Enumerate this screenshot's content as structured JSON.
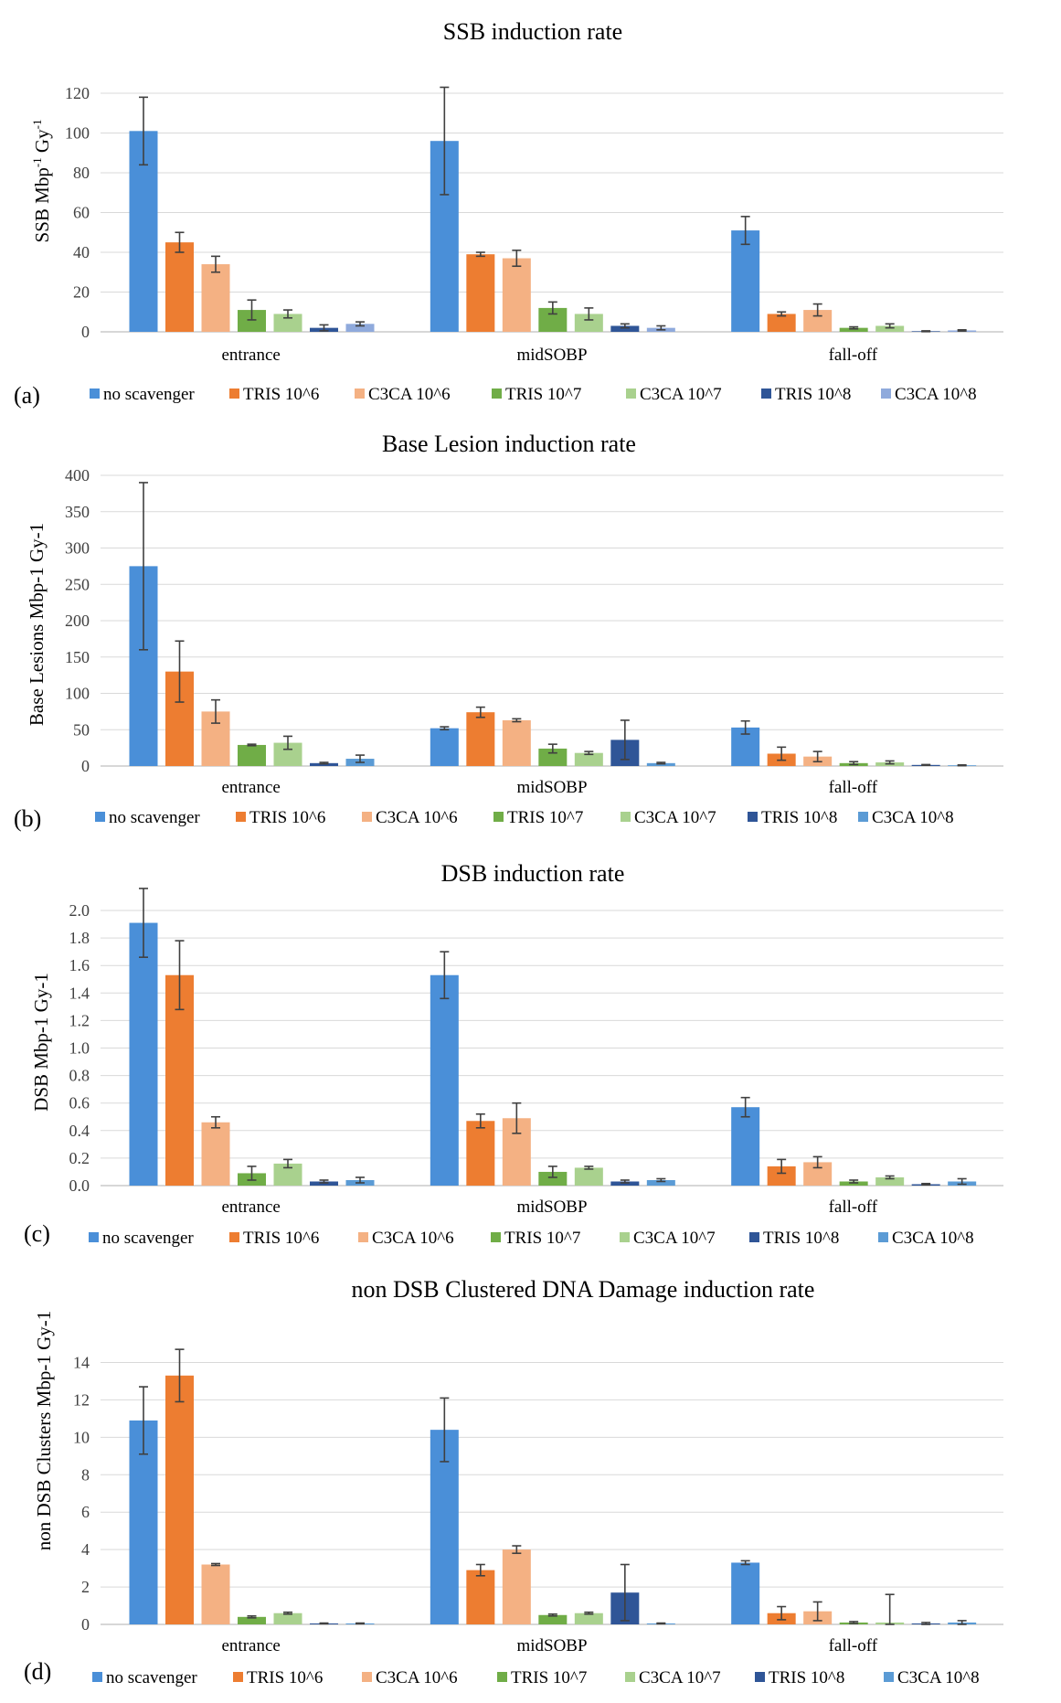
{
  "figure": {
    "categories": [
      "entrance",
      "midSOBP",
      "fall-off"
    ],
    "series_names": [
      "no scavenger",
      "TRIS 10^6",
      "C3CA 10^6",
      "TRIS 10^7",
      "C3CA 10^7",
      "TRIS 10^8",
      "C3CA 10^8"
    ],
    "series_names_panel_a": [
      "no scavenger",
      "TRIS 10^6",
      "C3CA 10^6",
      "TRIS  10^7",
      "C3CA 10^7",
      "TRIS 10^8",
      "C3CA 10^8"
    ],
    "colors": [
      "#4a8fd8",
      "#ed7d31",
      "#f4b183",
      "#70ad47",
      "#a9d18e",
      "#2f5597",
      "#5b9bd5"
    ],
    "colors_panel_a": [
      "#4a8fd8",
      "#ed7d31",
      "#f4b183",
      "#70ad47",
      "#a9d18e",
      "#2f5597",
      "#8faadc"
    ]
  },
  "chart_data": [
    {
      "type": "bar",
      "panel_label": "(a)",
      "title": "SSB induction rate",
      "ylabel": "SSB Mbp-1 Gy-1",
      "ylabel_parts": [
        "SSB Mbp",
        "-1",
        " Gy",
        "-1"
      ],
      "ylim": [
        0,
        120
      ],
      "yticks": [
        "0",
        "20",
        "40",
        "60",
        "80",
        "100",
        "120"
      ],
      "ytick_values": [
        0,
        20,
        40,
        60,
        80,
        100,
        120
      ],
      "categories": [
        "entrance",
        "midSOBP",
        "fall-off"
      ],
      "series": [
        {
          "name": "no scavenger",
          "values": [
            101,
            96,
            51
          ],
          "errors": [
            17,
            27,
            7
          ]
        },
        {
          "name": "TRIS 10^6",
          "values": [
            45,
            39,
            9
          ],
          "errors": [
            5,
            1,
            1
          ]
        },
        {
          "name": "C3CA 10^6",
          "values": [
            34,
            37,
            11
          ],
          "errors": [
            4,
            4,
            3
          ]
        },
        {
          "name": "TRIS  10^7",
          "values": [
            11,
            12,
            2
          ],
          "errors": [
            5,
            3,
            0.5
          ]
        },
        {
          "name": "C3CA 10^7",
          "values": [
            9,
            9,
            3
          ],
          "errors": [
            2,
            3,
            1
          ]
        },
        {
          "name": "TRIS 10^8",
          "values": [
            2,
            3,
            0.3
          ],
          "errors": [
            1.5,
            1,
            0.2
          ]
        },
        {
          "name": "C3CA 10^8",
          "values": [
            4,
            2,
            0.7
          ],
          "errors": [
            1,
            1,
            0.3
          ]
        }
      ]
    },
    {
      "type": "bar",
      "panel_label": "(b)",
      "title": "Base Lesion induction rate",
      "ylabel": "Base Lesions Mbp-1 Gy-1",
      "ylim": [
        0,
        400
      ],
      "yticks": [
        "0",
        "50",
        "100",
        "150",
        "200",
        "250",
        "300",
        "350",
        "400"
      ],
      "ytick_values": [
        0,
        50,
        100,
        150,
        200,
        250,
        300,
        350,
        400
      ],
      "categories": [
        "entrance",
        "midSOBP",
        "fall-off"
      ],
      "series": [
        {
          "name": "no scavenger",
          "values": [
            275,
            52,
            53
          ],
          "errors": [
            115,
            2,
            9
          ]
        },
        {
          "name": "TRIS 10^6",
          "values": [
            130,
            74,
            17
          ],
          "errors": [
            42,
            7,
            9
          ]
        },
        {
          "name": "C3CA 10^6",
          "values": [
            75,
            63,
            13
          ],
          "errors": [
            16,
            2,
            7
          ]
        },
        {
          "name": "TRIS 10^7",
          "values": [
            29,
            24,
            4
          ],
          "errors": [
            1,
            6,
            2
          ]
        },
        {
          "name": "C3CA 10^7",
          "values": [
            32,
            18,
            5
          ],
          "errors": [
            9,
            2,
            2
          ]
        },
        {
          "name": "TRIS 10^8",
          "values": [
            4,
            36,
            1.5
          ],
          "errors": [
            1,
            27,
            0.5
          ]
        },
        {
          "name": "C3CA 10^8",
          "values": [
            10,
            4,
            1
          ],
          "errors": [
            5,
            1,
            0.5
          ]
        }
      ]
    },
    {
      "type": "bar",
      "panel_label": "(c)",
      "title": "DSB induction rate",
      "ylabel": "DSB Mbp-1 Gy-1",
      "ylim": [
        0,
        2.0
      ],
      "yticks": [
        "0.0",
        "0.2",
        "0.4",
        "0.6",
        "0.8",
        "1.0",
        "1.2",
        "1.4",
        "1.6",
        "1.8",
        "2.0"
      ],
      "ytick_values": [
        0,
        0.2,
        0.4,
        0.6,
        0.8,
        1.0,
        1.2,
        1.4,
        1.6,
        1.8,
        2.0
      ],
      "categories": [
        "entrance",
        "midSOBP",
        "fall-off"
      ],
      "series": [
        {
          "name": "no scavenger",
          "values": [
            1.91,
            1.53,
            0.57
          ],
          "errors": [
            0.25,
            0.17,
            0.07
          ]
        },
        {
          "name": "TRIS 10^6",
          "values": [
            1.53,
            0.47,
            0.14
          ],
          "errors": [
            0.25,
            0.05,
            0.05
          ]
        },
        {
          "name": "C3CA 10^6",
          "values": [
            0.46,
            0.49,
            0.17
          ],
          "errors": [
            0.04,
            0.11,
            0.04
          ]
        },
        {
          "name": "TRIS 10^7",
          "values": [
            0.09,
            0.1,
            0.03
          ],
          "errors": [
            0.05,
            0.04,
            0.01
          ]
        },
        {
          "name": "C3CA 10^7",
          "values": [
            0.16,
            0.13,
            0.06
          ],
          "errors": [
            0.03,
            0.01,
            0.01
          ]
        },
        {
          "name": "TRIS 10^8",
          "values": [
            0.03,
            0.03,
            0.01
          ],
          "errors": [
            0.01,
            0.01,
            0.005
          ]
        },
        {
          "name": "C3CA 10^8",
          "values": [
            0.04,
            0.04,
            0.03
          ],
          "errors": [
            0.02,
            0.01,
            0.02
          ]
        }
      ]
    },
    {
      "type": "bar",
      "panel_label": "(d)",
      "title": "non DSB Clustered DNA Damage induction rate",
      "ylabel": "non DSB Clusters Mbp-1 Gy-1",
      "ylim": [
        0,
        15
      ],
      "yticks": [
        "0",
        "2",
        "4",
        "6",
        "8",
        "10",
        "12",
        "14"
      ],
      "ytick_values": [
        0,
        2,
        4,
        6,
        8,
        10,
        12,
        14
      ],
      "categories": [
        "entrance",
        "midSOBP",
        "fall-off"
      ],
      "series": [
        {
          "name": "no scavenger",
          "values": [
            10.9,
            10.4,
            3.3
          ],
          "errors": [
            1.8,
            1.7,
            0.1
          ]
        },
        {
          "name": "TRIS 10^6",
          "values": [
            13.3,
            2.9,
            0.6
          ],
          "errors": [
            1.4,
            0.3,
            0.35
          ]
        },
        {
          "name": "C3CA 10^6",
          "values": [
            3.2,
            4.0,
            0.7
          ],
          "errors": [
            0.05,
            0.2,
            0.5
          ]
        },
        {
          "name": "TRIS 10^7",
          "values": [
            0.4,
            0.5,
            0.1
          ],
          "errors": [
            0.05,
            0.05,
            0.05
          ]
        },
        {
          "name": "C3CA 10^7",
          "values": [
            0.6,
            0.6,
            0.1
          ],
          "errors": [
            0.05,
            0.05,
            1.5
          ]
        },
        {
          "name": "TRIS 10^8",
          "values": [
            0.05,
            1.7,
            0.05
          ],
          "errors": [
            0.02,
            1.5,
            0.05
          ]
        },
        {
          "name": "C3CA 10^8",
          "values": [
            0.05,
            0.05,
            0.1
          ],
          "errors": [
            0.02,
            0.02,
            0.1
          ]
        }
      ]
    }
  ]
}
